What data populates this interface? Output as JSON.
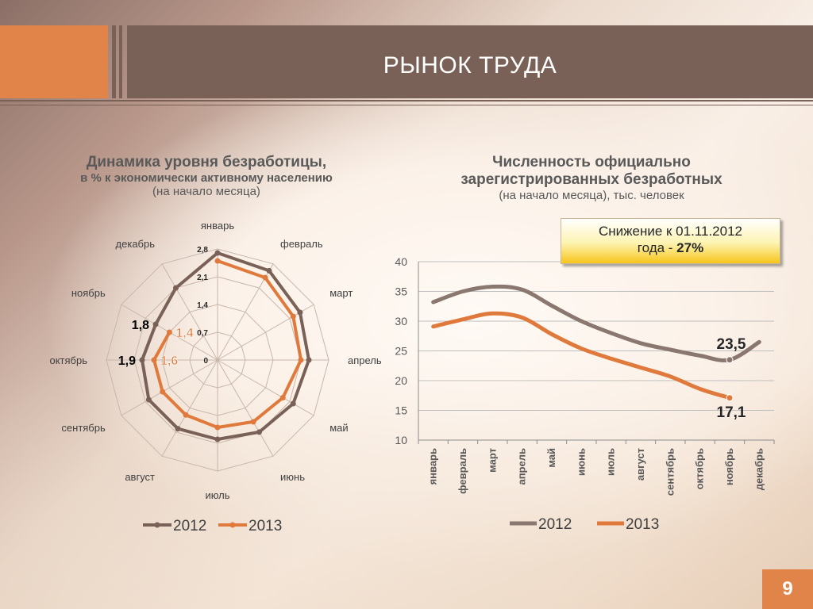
{
  "slide": {
    "title": "РЫНОК ТРУДА",
    "page_number": "9"
  },
  "left_chart_header": {
    "line1": "Динамика уровня безработицы,",
    "line2": "в % к экономически активному населению",
    "line3": "(на начало месяца)"
  },
  "right_chart_header": {
    "line1": "Численность официально",
    "line2": "зарегистрированных безработных",
    "line3": "(на начало месяца), тыс. человек"
  },
  "callout": {
    "line1": "Снижение к 01.11.2012",
    "line2_prefix": "года - ",
    "line2_value": "27%"
  },
  "colors": {
    "series_2012": "#7a6157",
    "series_2013": "#e07a3c",
    "header_bg": "#7a6157",
    "accent_orange": "#e0844a"
  },
  "chart_data": [
    {
      "type": "radar",
      "categories": [
        "январь",
        "февраль",
        "март",
        "апрель",
        "май",
        "июнь",
        "июль",
        "август",
        "сентябрь",
        "октябрь",
        "ноябрь",
        "декабрь"
      ],
      "radial_ticks": [
        "0",
        "0,7",
        "1,4",
        "2,1",
        "2,8"
      ],
      "rmax": 2.8,
      "legend_position": "bottom",
      "series": [
        {
          "name": "2012",
          "values": [
            2.7,
            2.6,
            2.4,
            2.3,
            2.2,
            2.1,
            2.0,
            2.0,
            2.0,
            1.9,
            1.8,
            2.1
          ]
        },
        {
          "name": "2013",
          "values": [
            2.5,
            2.4,
            2.2,
            2.1,
            1.9,
            1.8,
            1.7,
            1.6,
            1.6,
            1.6,
            1.4,
            null
          ]
        }
      ],
      "data_labels": [
        {
          "series": "2012",
          "category": "ноябрь",
          "text": "1,8"
        },
        {
          "series": "2012",
          "category": "октябрь",
          "text": "1,9"
        },
        {
          "series": "2013",
          "category": "ноябрь",
          "text": "1,4"
        },
        {
          "series": "2013",
          "category": "октябрь",
          "text": "1,6"
        }
      ]
    },
    {
      "type": "line",
      "categories": [
        "январь",
        "февраль",
        "март",
        "апрель",
        "май",
        "июнь",
        "июль",
        "август",
        "сентябрь",
        "октябрь",
        "ноябрь",
        "декабрь"
      ],
      "ylim": [
        10,
        40
      ],
      "yticks": [
        "10",
        "15",
        "20",
        "25",
        "30",
        "35",
        "40"
      ],
      "grid": true,
      "legend_position": "bottom",
      "series": [
        {
          "name": "2012",
          "values": [
            33.2,
            35.0,
            35.8,
            35.3,
            32.6,
            30.0,
            28.0,
            26.3,
            25.2,
            24.2,
            23.5,
            26.5
          ]
        },
        {
          "name": "2013",
          "values": [
            29.1,
            30.3,
            31.3,
            30.6,
            27.8,
            25.4,
            23.7,
            22.2,
            20.7,
            18.6,
            17.1,
            null
          ]
        }
      ],
      "data_labels": [
        {
          "series": "2012",
          "category": "ноябрь",
          "text": "23,5"
        },
        {
          "series": "2013",
          "category": "ноябрь",
          "text": "17,1"
        }
      ]
    }
  ]
}
